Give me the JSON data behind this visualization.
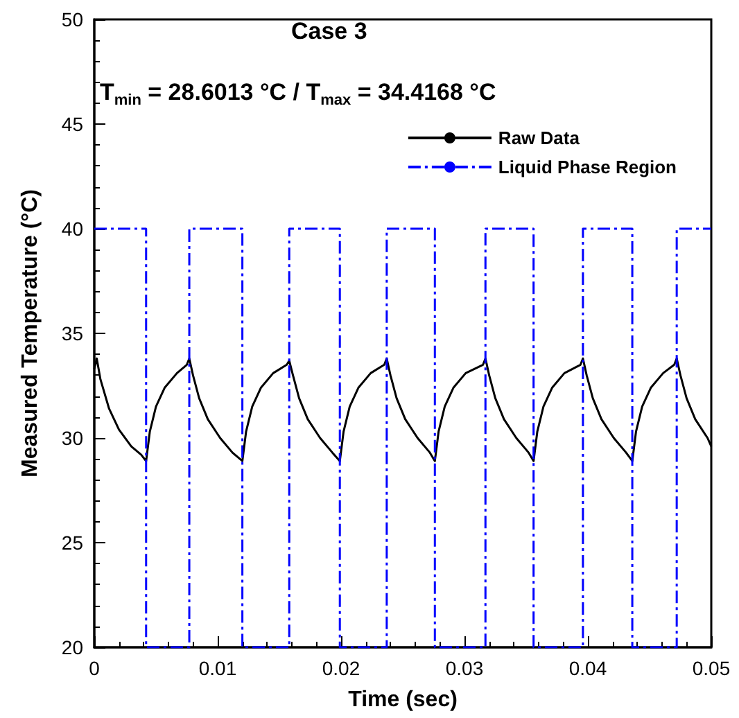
{
  "chart_data": {
    "type": "line",
    "xlabel": "Time (sec)",
    "ylabel": "Measured Temperature (°C)",
    "annotations": [
      "Case 3",
      "T$_{min}$ = 28.6013 °C / T$_{max}$ = 34.4168 °C"
    ],
    "xlim": [
      0,
      0.05
    ],
    "xticks": [
      0,
      0.01,
      0.02,
      0.03,
      0.04,
      0.05
    ],
    "ylim": [
      20,
      50
    ],
    "yticks": [
      20,
      25,
      30,
      35,
      40,
      45,
      50
    ],
    "grid": false,
    "legend": "top right",
    "series": [
      {
        "name": "Raw Data",
        "color": "#000000",
        "line_style": "solid",
        "x": [
          0,
          0.0002,
          0.0005,
          0.0012,
          0.002,
          0.003,
          0.0038,
          0.0042,
          0.0045,
          0.005,
          0.0057,
          0.0067,
          0.0075,
          0.0077,
          0.008,
          0.0085,
          0.0092,
          0.0102,
          0.0112,
          0.012,
          0.0123,
          0.0128,
          0.0135,
          0.0145,
          0.0156,
          0.0158,
          0.0161,
          0.0166,
          0.0173,
          0.0183,
          0.0193,
          0.0199,
          0.0202,
          0.0207,
          0.0214,
          0.0224,
          0.0235,
          0.0237,
          0.024,
          0.0245,
          0.0252,
          0.0262,
          0.0272,
          0.0276,
          0.0279,
          0.0284,
          0.0291,
          0.0301,
          0.0315,
          0.0317,
          0.032,
          0.0325,
          0.0332,
          0.0342,
          0.0352,
          0.0356,
          0.0359,
          0.0364,
          0.0371,
          0.0381,
          0.0394,
          0.0396,
          0.0399,
          0.0404,
          0.0411,
          0.0421,
          0.0431,
          0.0436,
          0.0439,
          0.0444,
          0.0451,
          0.0461,
          0.047,
          0.0472,
          0.0475,
          0.048,
          0.0487,
          0.0497,
          0.05
        ],
        "values": [
          33.3,
          33.8,
          32.8,
          31.4,
          30.4,
          29.6,
          29.2,
          28.9,
          30.3,
          31.5,
          32.4,
          33.1,
          33.5,
          33.8,
          33.0,
          31.9,
          30.9,
          30.0,
          29.3,
          28.9,
          30.3,
          31.5,
          32.4,
          33.1,
          33.5,
          33.7,
          33.0,
          31.9,
          30.9,
          30.0,
          29.3,
          28.9,
          30.3,
          31.5,
          32.4,
          33.1,
          33.5,
          33.8,
          33.0,
          31.9,
          30.9,
          30.0,
          29.3,
          28.9,
          30.3,
          31.5,
          32.4,
          33.1,
          33.5,
          33.8,
          33.0,
          31.9,
          30.9,
          30.0,
          29.3,
          28.9,
          30.3,
          31.5,
          32.4,
          33.1,
          33.5,
          33.8,
          33.0,
          31.9,
          30.9,
          30.0,
          29.3,
          28.9,
          30.3,
          31.5,
          32.4,
          33.1,
          33.5,
          33.8,
          33.0,
          31.9,
          30.9,
          30.0,
          29.6
        ]
      },
      {
        "name": "Liquid Phase Region",
        "type": "step",
        "color": "#0000ff",
        "line_style": "dashdot",
        "x": [
          0,
          0.0042,
          0.0077,
          0.012,
          0.0158,
          0.0199,
          0.0237,
          0.0276,
          0.0317,
          0.0356,
          0.0396,
          0.0436,
          0.0472,
          0.05
        ],
        "values": [
          40,
          20,
          40,
          20,
          40,
          20,
          40,
          20,
          40,
          20,
          40,
          20,
          40,
          40
        ]
      }
    ]
  }
}
